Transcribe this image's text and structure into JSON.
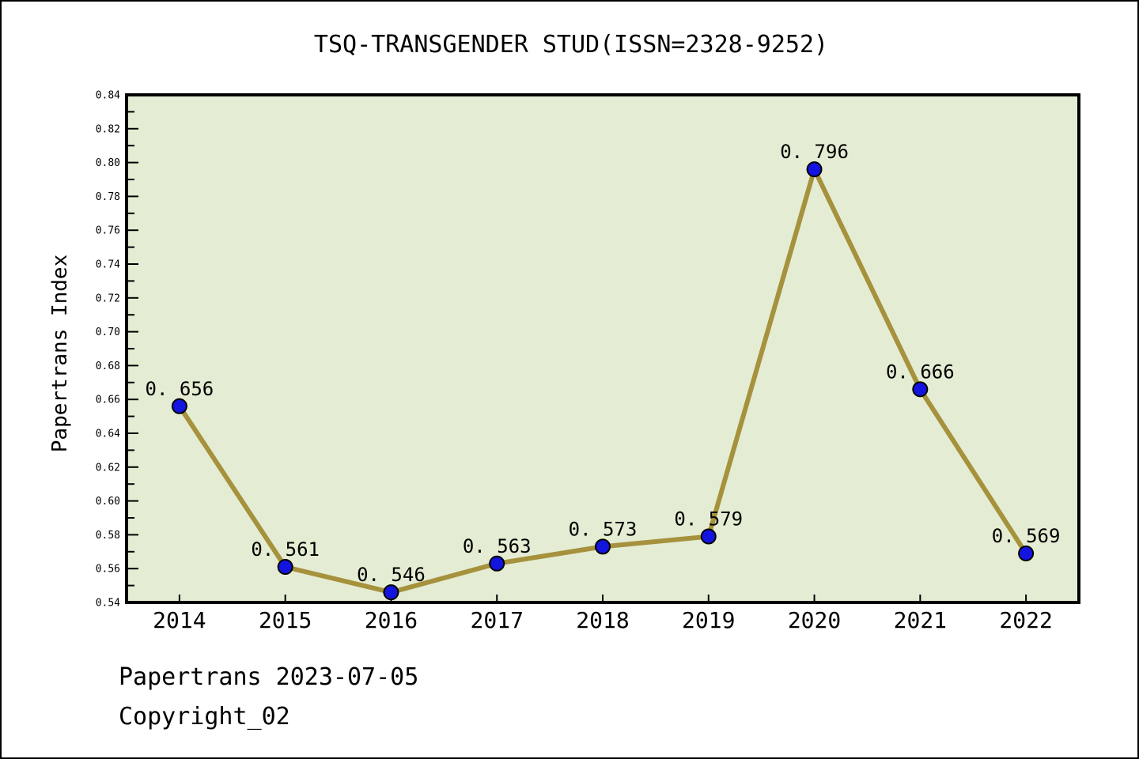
{
  "title": "TSQ-TRANSGENDER STUD(ISSN=2328-9252)",
  "footer": {
    "line1": "Papertrans 2023-07-05",
    "line2": "Copyright_02"
  },
  "chart_data": {
    "type": "line",
    "title": "TSQ-TRANSGENDER STUD(ISSN=2328-9252)",
    "xlabel": "",
    "ylabel": "Papertrans Index",
    "categories": [
      "2014",
      "2015",
      "2016",
      "2017",
      "2018",
      "2019",
      "2020",
      "2021",
      "2022"
    ],
    "series": [
      {
        "name": "Papertrans Index",
        "values": [
          0.656,
          0.561,
          0.546,
          0.563,
          0.573,
          0.579,
          0.796,
          0.666,
          0.569
        ],
        "point_labels": [
          "0. 656",
          "0. 561",
          "0. 546",
          "0. 563",
          "0. 573",
          "0. 579",
          "0. 796",
          "0. 666",
          "0. 569"
        ]
      }
    ],
    "ylim": [
      0.54,
      0.84
    ],
    "ytick_step": 0.02,
    "ytick_minor_step": 0.01,
    "ytick_labels": [
      "0.54",
      "0.56",
      "0.58",
      "0.60",
      "0.62",
      "0.64",
      "0.66",
      "0.68",
      "0.70",
      "0.72",
      "0.74",
      "0.76",
      "0.78",
      "0.80",
      "0.82",
      "0.84"
    ],
    "grid": false,
    "legend_position": "none",
    "colors": {
      "line": "#A6913C",
      "marker_fill": "#1414E0",
      "marker_edge": "#000000",
      "plot_background": "#E4EDD3",
      "axis": "#000000",
      "text": "#000000",
      "page_background": "#FFFFFF"
    }
  }
}
